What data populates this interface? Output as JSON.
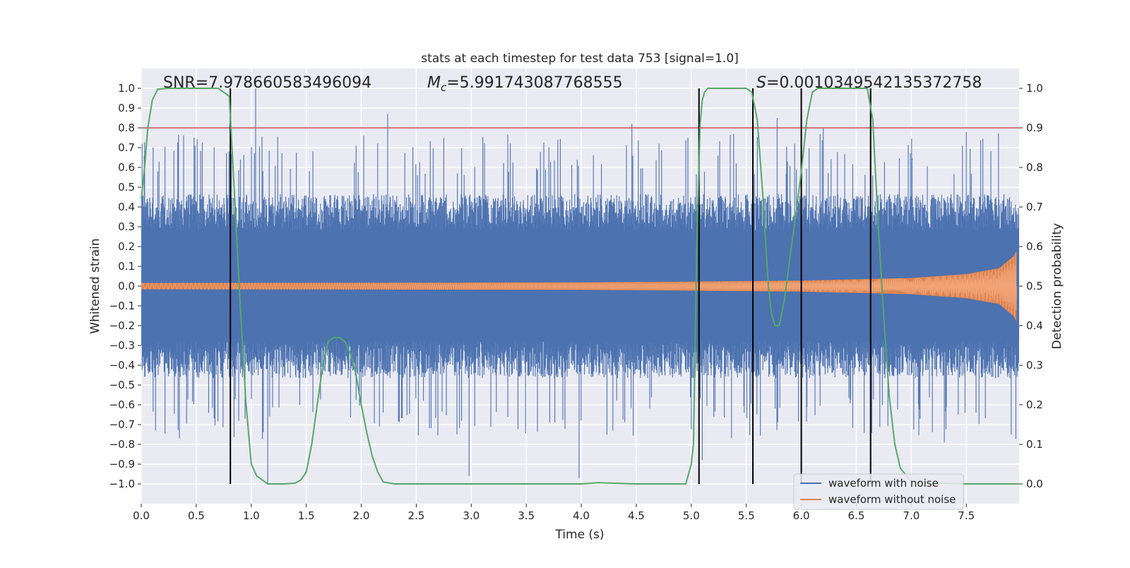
{
  "chart_data": {
    "type": "line",
    "title": "stats at each timestep for test data 753 [signal=1.0]",
    "xlabel": "Time (s)",
    "ylabel": "Whitened strain",
    "y2label": "Detection probability",
    "xlim": [
      0.0,
      7.98
    ],
    "ylim": [
      -1.1,
      1.1
    ],
    "y2lim": [
      -0.05,
      1.05
    ],
    "x_ticks": [
      "0.0",
      "0.5",
      "1.0",
      "1.5",
      "2.0",
      "2.5",
      "3.0",
      "3.5",
      "4.0",
      "4.5",
      "5.0",
      "5.5",
      "6.0",
      "6.5",
      "7.0",
      "7.5"
    ],
    "y_ticks": [
      "1.0",
      "0.9",
      "0.8",
      "0.7",
      "0.6",
      "0.5",
      "0.4",
      "0.3",
      "0.2",
      "0.1",
      "0.0",
      "−0.1",
      "−0.2",
      "−0.3",
      "−0.4",
      "−0.5",
      "−0.6",
      "−0.7",
      "−0.8",
      "−0.9",
      "−1.0"
    ],
    "y2_ticks": [
      "1.0",
      "0.9",
      "0.8",
      "0.7",
      "0.6",
      "0.5",
      "0.4",
      "0.3",
      "0.2",
      "0.1",
      "0.0"
    ],
    "grid": true,
    "legend_position": "bottom-right",
    "annotations": {
      "snr": "SNR=7.978660583496094",
      "mc_symbol": "M",
      "mc_sub": "c",
      "mc_value": "=5.991743087768555",
      "s_symbol": "S",
      "s_value": "=0.0010349542135372758"
    },
    "threshold": {
      "value": 0.9,
      "axis": "right",
      "color": "#c44e52"
    },
    "vertical_lines": [
      0.81,
      5.07,
      5.56,
      6.0,
      6.63
    ],
    "series": [
      {
        "name": "waveform with noise",
        "axis": "left",
        "color": "#4c72b0",
        "kind": "noise",
        "envelope": {
          "x": [
            0.0,
            8.0
          ],
          "upper": [
            0.62,
            0.62
          ],
          "lower": [
            -0.62,
            -0.62
          ]
        },
        "peaks": [
          {
            "x": 0.48,
            "y": 0.75
          },
          {
            "x": 0.81,
            "y": 0.98
          },
          {
            "x": 1.04,
            "y": 1.0
          },
          {
            "x": 1.15,
            "y": -1.0
          },
          {
            "x": 2.24,
            "y": 0.87
          },
          {
            "x": 4.46,
            "y": 0.82
          },
          {
            "x": 5.78,
            "y": 0.85
          },
          {
            "x": 6.2,
            "y": 0.8
          },
          {
            "x": 7.5,
            "y": 0.78
          },
          {
            "x": 0.13,
            "y": -0.73
          },
          {
            "x": 2.98,
            "y": -0.96
          },
          {
            "x": 3.98,
            "y": -0.97
          },
          {
            "x": 5.1,
            "y": -0.88
          },
          {
            "x": 7.3,
            "y": -0.79
          }
        ]
      },
      {
        "name": "waveform without noise",
        "axis": "left",
        "color": "#dd8452",
        "kind": "chirp",
        "amplitude": {
          "x": [
            0.0,
            2.0,
            4.0,
            5.0,
            6.0,
            7.0,
            7.5,
            7.8,
            7.93,
            7.96
          ],
          "y": [
            0.015,
            0.016,
            0.018,
            0.022,
            0.027,
            0.04,
            0.06,
            0.09,
            0.15,
            0.18
          ]
        }
      },
      {
        "name": "detection probability",
        "axis": "right",
        "color": "#55a868",
        "x": [
          0.0,
          0.03,
          0.06,
          0.1,
          0.15,
          0.25,
          0.5,
          0.7,
          0.75,
          0.8,
          0.85,
          0.9,
          0.95,
          1.0,
          1.05,
          1.15,
          1.3,
          1.4,
          1.45,
          1.5,
          1.55,
          1.6,
          1.65,
          1.7,
          1.75,
          1.8,
          1.85,
          1.9,
          1.95,
          2.0,
          2.05,
          2.1,
          2.15,
          2.2,
          2.3,
          3.0,
          4.0,
          4.15,
          4.5,
          4.95,
          5.0,
          5.02,
          5.05,
          5.08,
          5.1,
          5.12,
          5.15,
          5.2,
          5.3,
          5.5,
          5.55,
          5.6,
          5.65,
          5.7,
          5.73,
          5.76,
          5.8,
          5.85,
          5.9,
          5.95,
          6.0,
          6.05,
          6.1,
          6.15,
          6.2,
          6.3,
          6.5,
          6.6,
          6.65,
          6.7,
          6.75,
          6.8,
          6.85,
          6.9,
          7.0,
          7.5,
          7.98
        ],
        "y": [
          0.72,
          0.8,
          0.9,
          0.97,
          0.998,
          1.0,
          1.0,
          1.0,
          0.99,
          0.98,
          0.72,
          0.45,
          0.21,
          0.05,
          0.02,
          0.0,
          0.0,
          0.002,
          0.01,
          0.03,
          0.1,
          0.2,
          0.3,
          0.36,
          0.37,
          0.37,
          0.36,
          0.33,
          0.28,
          0.2,
          0.13,
          0.07,
          0.03,
          0.005,
          0.0,
          0.0,
          0.0,
          0.003,
          0.0,
          0.0,
          0.05,
          0.1,
          0.6,
          0.91,
          0.97,
          0.99,
          1.0,
          1.0,
          1.0,
          1.0,
          0.99,
          0.92,
          0.73,
          0.5,
          0.43,
          0.4,
          0.4,
          0.47,
          0.58,
          0.68,
          0.79,
          0.92,
          0.99,
          1.0,
          1.0,
          1.0,
          1.0,
          1.0,
          0.92,
          0.65,
          0.42,
          0.22,
          0.1,
          0.04,
          0.005,
          0.0,
          0.0
        ]
      }
    ]
  }
}
